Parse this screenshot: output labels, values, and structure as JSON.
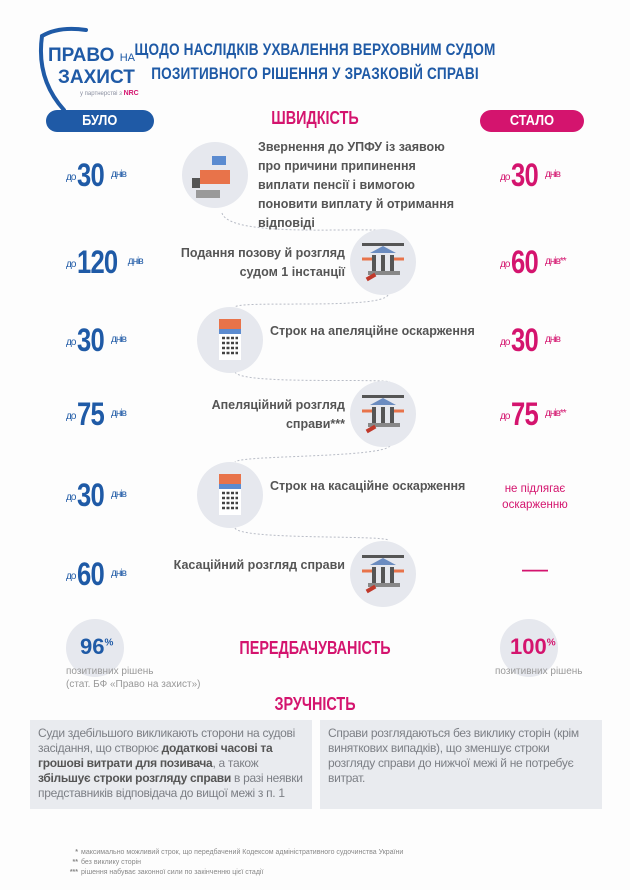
{
  "logo": {
    "line1": "ПРАВО",
    "line1_small": "НА",
    "line2": "ЗАХИСТ",
    "partner": "у партнерстві з",
    "partner_brand": "NRC"
  },
  "title": [
    "ЩОДО НАСЛІДКІВ УХВАЛЕННЯ ВЕРХОВНИМ СУДОМ",
    "ПОЗИТИВНОГО РІШЕННЯ У ЗРАЗКОВІЙ СПРАВІ"
  ],
  "colors": {
    "blue": "#1f5aa6",
    "pink": "#d4146e"
  },
  "labels": {
    "before": "БУЛО",
    "after": "СТАЛО",
    "speed": "ШВИДКІСТЬ",
    "predictability": "ПЕРЕДБАЧУВАНІСТЬ",
    "convenience": "ЗРУЧНІСТЬ",
    "prefix": "до",
    "unit": "днів"
  },
  "steps": [
    {
      "text": "Звернення до УПФУ із заявою про причини припинення виплати пенсії і вимогою поновити виплату й отримання відповіді",
      "icon": "office-reception-icon",
      "before": "30",
      "after": "30",
      "after_mark": ""
    },
    {
      "text": "Подання позову й розгляд судом 1 інстанції",
      "icon": "courthouse-icon",
      "before": "120",
      "after": "60",
      "after_mark": "**"
    },
    {
      "text": "Строк на апеляційне оскарження",
      "icon": "calendar-icon",
      "before": "30",
      "after": "30",
      "after_mark": ""
    },
    {
      "text": "Апеляційний розгляд справи***",
      "icon": "courthouse-icon",
      "before": "75",
      "after": "75",
      "after_mark": "**"
    },
    {
      "text": "Строк на касаційне оскарження",
      "icon": "calendar-icon",
      "before": "30",
      "after_text": "не підлягає оскарженню"
    },
    {
      "text": "Касаційний розгляд справи",
      "icon": "courthouse-icon",
      "before": "60",
      "after_text": "—"
    }
  ],
  "stats": {
    "before_value": "96",
    "before_unit": "%",
    "before_label": "позитивних рішень",
    "before_source": "(стат. БФ «Право на захист»)",
    "after_value": "100",
    "after_unit": "%",
    "after_label": "позитивних рішень"
  },
  "boxes": {
    "before": [
      {
        "t": "Суди здебільшого викликають сторони на судові засідання, що створює "
      },
      {
        "t": "додаткові часові та грошові витрати для позивача",
        "b": true
      },
      {
        "t": ", а також "
      },
      {
        "t": "збільшує строки розгляду справи",
        "b": true
      },
      {
        "t": " в разі неявки представників відповідача до вищої межі з п. 1"
      }
    ],
    "after": "Справи розглядаються без виклику сторін (крім виняткових випадків), що зменшує строки розгляду справи до нижчої межі й не потребує витрат."
  },
  "footnotes": [
    {
      "mark": "*",
      "text": "максимально можливий строк, що передбачений Кодексом адміністративного судочинства України"
    },
    {
      "mark": "**",
      "text": "без виклику сторін"
    },
    {
      "mark": "***",
      "text": "рішення набуває законної сили по закінченню цієї стадії"
    }
  ]
}
